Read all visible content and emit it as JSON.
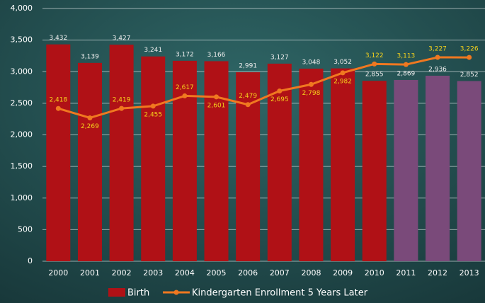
{
  "chart_data": {
    "type": "bar",
    "categories": [
      "2000",
      "2001",
      "2002",
      "2003",
      "2004",
      "2005",
      "2006",
      "2007",
      "2008",
      "2009",
      "2010",
      "2011",
      "2012",
      "2013"
    ],
    "series": [
      {
        "name": "Birth",
        "type": "bar",
        "color": "#b01116",
        "label_color": "#eeeeee",
        "colors": [
          "#b01116",
          "#b01116",
          "#b01116",
          "#b01116",
          "#b01116",
          "#b01116",
          "#b01116",
          "#b01116",
          "#b01116",
          "#b01116",
          "#b01116",
          "#7a4a7a",
          "#7a4a7a",
          "#7a4a7a"
        ],
        "values": [
          3432,
          3139,
          3427,
          3241,
          3172,
          3166,
          2991,
          3127,
          3048,
          3052,
          2855,
          2869,
          2936,
          2852
        ],
        "value_labels": [
          "3,432",
          "3,139",
          "3,427",
          "3,241",
          "3,172",
          "3,166",
          "2,991",
          "3,127",
          "3,048",
          "3,052",
          "2,855",
          "2,869",
          "2,936",
          "2,852"
        ]
      },
      {
        "name": "Kindergarten Enrollment 5 Years Later",
        "type": "line",
        "color": "#f07820",
        "label_color": "#f5d21c",
        "values": [
          2418,
          2269,
          2419,
          2455,
          2617,
          2601,
          2479,
          2695,
          2798,
          2982,
          3122,
          3113,
          3227,
          3226
        ],
        "value_labels": [
          "2,418",
          "2,269",
          "2,419",
          "2,455",
          "2,617",
          "2,601",
          "2,479",
          "2,695",
          "2,798",
          "2,982",
          "3,122",
          "3,113",
          "3,227",
          "3,226"
        ]
      }
    ],
    "ylim": [
      0,
      4000
    ],
    "yticks": [
      0,
      500,
      {
        "value": 1000,
        "label": "1,000"
      },
      {
        "value": 1500,
        "label": "1,500"
      },
      {
        "value": 2000,
        "label": "2,000"
      },
      {
        "value": 2500,
        "label": "2,500"
      },
      {
        "value": 3000,
        "label": "3,000"
      },
      {
        "value": 3500,
        "label": "3,500"
      },
      {
        "value": 4000,
        "label": "4,000"
      }
    ],
    "grid": true
  }
}
